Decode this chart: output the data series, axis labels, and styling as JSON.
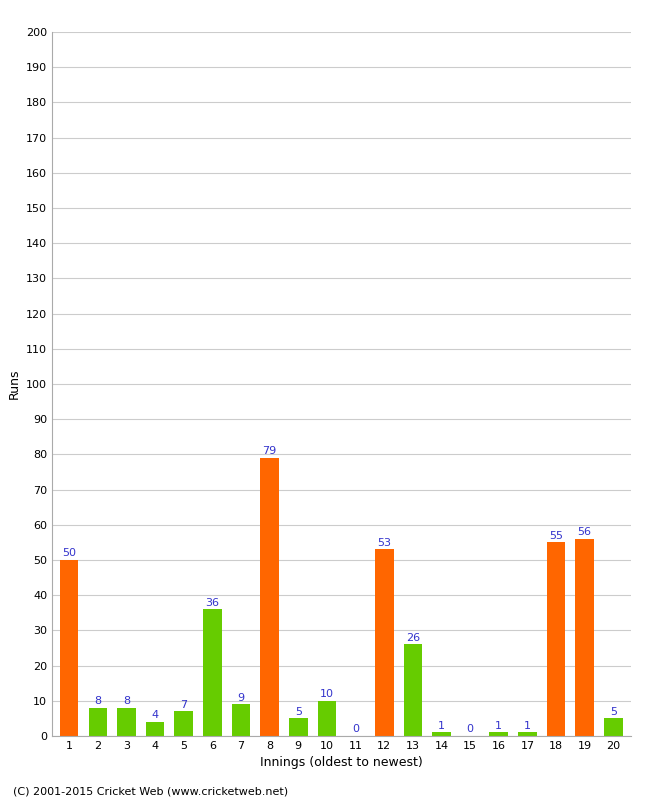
{
  "title": "",
  "xlabel": "Innings (oldest to newest)",
  "ylabel": "Runs",
  "ylim": [
    0,
    200
  ],
  "yticks": [
    0,
    10,
    20,
    30,
    40,
    50,
    60,
    70,
    80,
    90,
    100,
    110,
    120,
    130,
    140,
    150,
    160,
    170,
    180,
    190,
    200
  ],
  "innings": [
    1,
    2,
    3,
    4,
    5,
    6,
    7,
    8,
    9,
    10,
    11,
    12,
    13,
    14,
    15,
    16,
    17,
    18,
    19,
    20
  ],
  "values": [
    50,
    8,
    8,
    4,
    7,
    36,
    9,
    79,
    5,
    10,
    0,
    53,
    26,
    1,
    0,
    1,
    1,
    55,
    56,
    5
  ],
  "colors": [
    "#ff6600",
    "#66cc00",
    "#66cc00",
    "#66cc00",
    "#66cc00",
    "#66cc00",
    "#66cc00",
    "#ff6600",
    "#66cc00",
    "#66cc00",
    "#66cc00",
    "#ff6600",
    "#66cc00",
    "#66cc00",
    "#66cc00",
    "#66cc00",
    "#66cc00",
    "#ff6600",
    "#ff6600",
    "#66cc00"
  ],
  "label_color": "#3333cc",
  "background_color": "#ffffff",
  "footer": "(C) 2001-2015 Cricket Web (www.cricketweb.net)",
  "label_fontsize": 8,
  "axis_fontsize": 8,
  "footer_fontsize": 8,
  "bar_width": 0.65
}
